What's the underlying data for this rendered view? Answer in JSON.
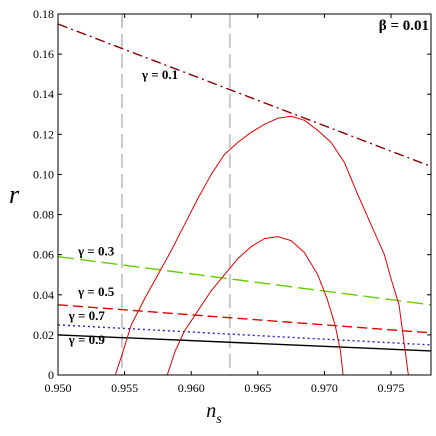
{
  "chart_data": {
    "type": "line",
    "xlabel": "n",
    "xlabel_sub": "s",
    "ylabel": "r",
    "xlim": [
      0.95,
      0.978
    ],
    "ylim": [
      0,
      0.18
    ],
    "xticks": [
      "0.950",
      "0.955",
      "0.960",
      "0.965",
      "0.970",
      "0.975"
    ],
    "xtick_values": [
      0.95,
      0.955,
      0.96,
      0.965,
      0.97,
      0.975
    ],
    "yticks": [
      "0",
      "0.02",
      "0.04",
      "0.06",
      "0.08",
      "0.10",
      "0.12",
      "0.14",
      "0.16",
      "0.18"
    ],
    "ytick_values": [
      0,
      0.02,
      0.04,
      0.06,
      0.08,
      0.1,
      0.12,
      0.14,
      0.16,
      0.18
    ],
    "corner_label": "β = 0.01",
    "vertical_lines": [
      {
        "x": 0.9548,
        "color": "#c8c8c8"
      },
      {
        "x": 0.9629,
        "color": "#c8c8c8"
      }
    ],
    "series": [
      {
        "name": "γ = 0.1",
        "color": "#8b0000",
        "dash": "dashdot",
        "x": [
          0.95,
          0.978
        ],
        "y": [
          0.175,
          0.104
        ]
      },
      {
        "name": "γ = 0.3",
        "color": "#66cc00",
        "dash": "longdash",
        "x": [
          0.95,
          0.978
        ],
        "y": [
          0.059,
          0.035
        ]
      },
      {
        "name": "γ = 0.5",
        "color": "#e60000",
        "dash": "dash",
        "x": [
          0.95,
          0.978
        ],
        "y": [
          0.035,
          0.021
        ]
      },
      {
        "name": "γ = 0.7",
        "color": "#2222cc",
        "dash": "dot",
        "x": [
          0.95,
          0.978
        ],
        "y": [
          0.025,
          0.015
        ]
      },
      {
        "name": "γ = 0.9",
        "color": "#000000",
        "dash": "solid",
        "x": [
          0.95,
          0.978
        ],
        "y": [
          0.02,
          0.012
        ]
      }
    ],
    "contours": [
      {
        "color": "#e60000",
        "x": [
          0.9543,
          0.9548,
          0.9555,
          0.9565,
          0.9575,
          0.9585,
          0.9595,
          0.9605,
          0.9615,
          0.9625,
          0.9635,
          0.9645,
          0.9655,
          0.9665,
          0.9675,
          0.9685,
          0.9695,
          0.9705,
          0.9715,
          0.9725,
          0.9735,
          0.9745,
          0.975,
          0.9756,
          0.976,
          0.9763
        ],
        "y": [
          0,
          0.01,
          0.025,
          0.038,
          0.05,
          0.062,
          0.075,
          0.088,
          0.1,
          0.11,
          0.116,
          0.121,
          0.125,
          0.128,
          0.129,
          0.127,
          0.122,
          0.116,
          0.106,
          0.09,
          0.075,
          0.06,
          0.048,
          0.035,
          0.015,
          0
        ]
      },
      {
        "color": "#e60000",
        "x": [
          0.9582,
          0.9588,
          0.9595,
          0.9605,
          0.9615,
          0.9625,
          0.9635,
          0.9645,
          0.9655,
          0.9665,
          0.9675,
          0.9685,
          0.9695,
          0.9702,
          0.9708,
          0.9712,
          0.9714
        ],
        "y": [
          0,
          0.012,
          0.022,
          0.032,
          0.042,
          0.05,
          0.058,
          0.064,
          0.068,
          0.069,
          0.067,
          0.061,
          0.05,
          0.038,
          0.025,
          0.012,
          0
        ]
      }
    ],
    "annotations": [
      {
        "text": "γ = 0.1",
        "x": 0.9563,
        "y": 0.1475
      },
      {
        "text": "γ = 0.3",
        "x": 0.9515,
        "y": 0.0595
      },
      {
        "text": "γ = 0.5",
        "x": 0.9515,
        "y": 0.0395
      },
      {
        "text": "γ = 0.7",
        "x": 0.9508,
        "y": 0.0275
      },
      {
        "text": "γ = 0.9",
        "x": 0.9508,
        "y": 0.0155
      }
    ]
  }
}
